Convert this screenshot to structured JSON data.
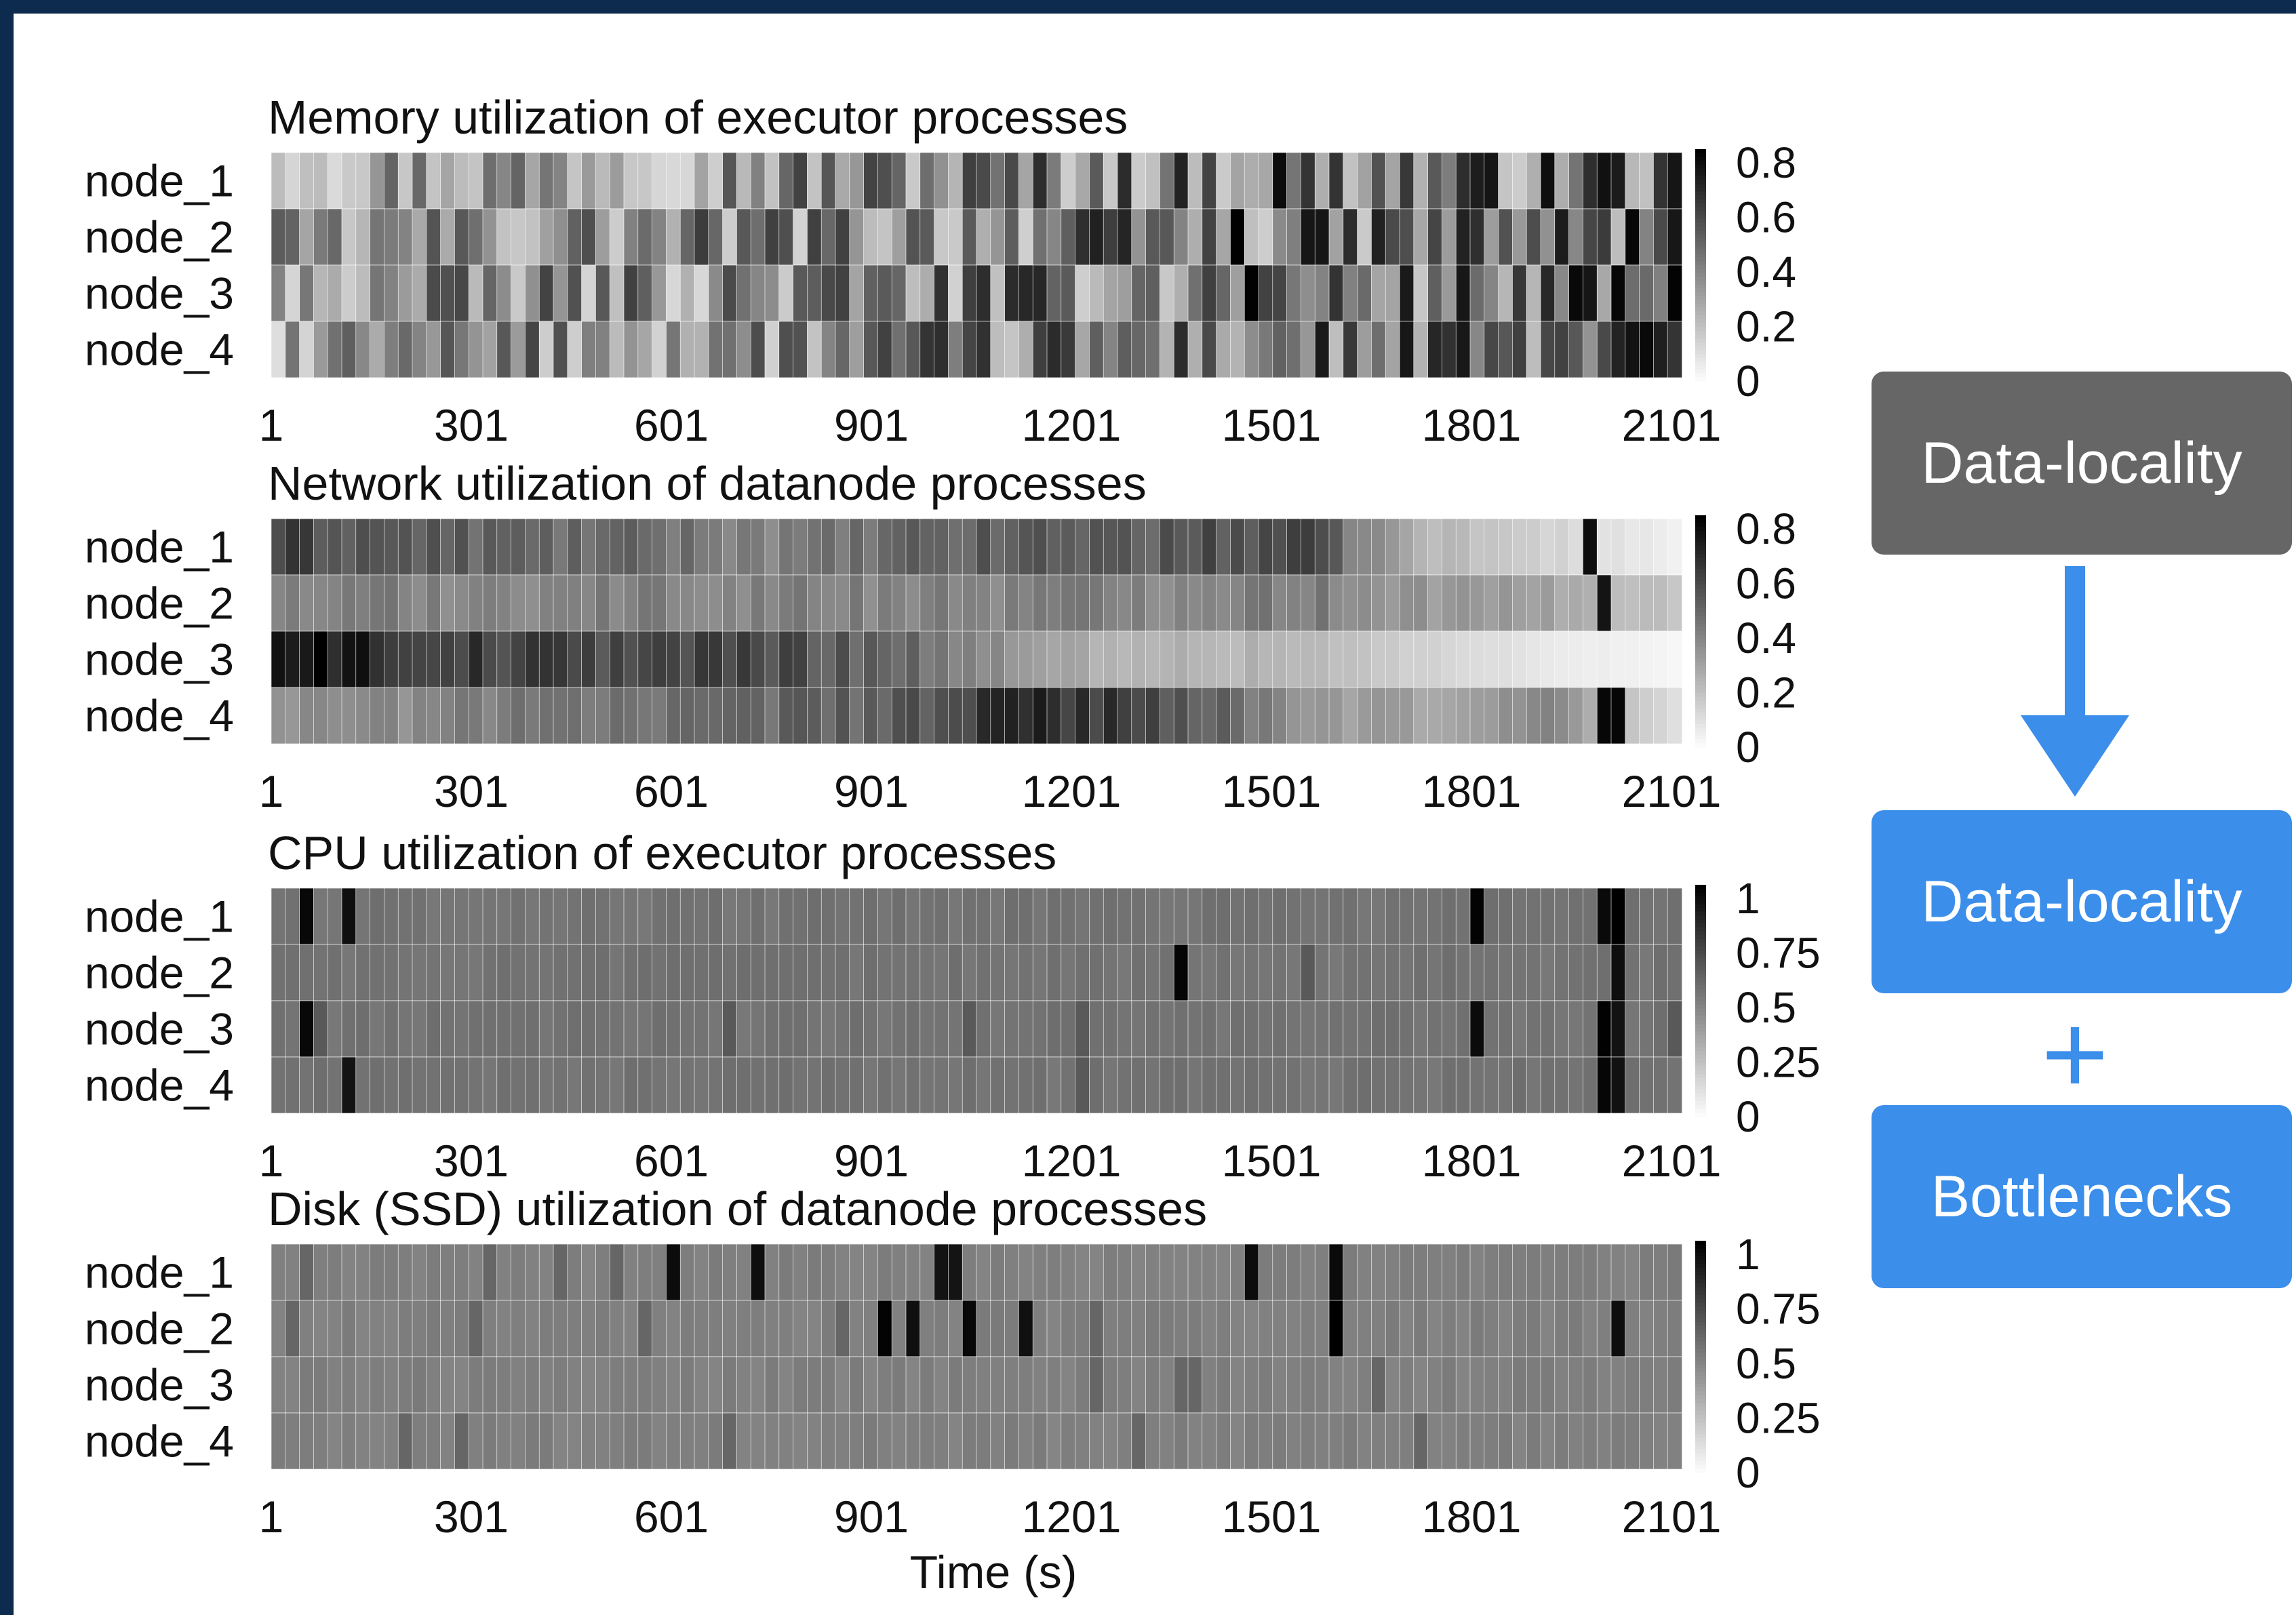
{
  "chart_data": [
    {
      "type": "heatmap",
      "title": "Memory utilization of executor processes",
      "rows": [
        "node_1",
        "node_2",
        "node_3",
        "node_4"
      ],
      "x_ticks": [
        "1",
        "301",
        "601",
        "901",
        "1201",
        "1501",
        "1801",
        "2101"
      ],
      "x_range": [
        1,
        2120
      ],
      "colorbar_ticks": [
        "0.8",
        "0.6",
        "0.4",
        "0.2",
        "0"
      ],
      "colorbar_range": [
        0,
        0.85
      ],
      "pattern": "random",
      "profile": [
        0.35,
        0.4,
        0.42,
        0.45,
        0.48,
        0.5,
        0.52,
        0.55
      ],
      "spike_x": [
        1450,
        1475,
        1525,
        2000,
        2040,
        2055,
        2075
      ],
      "spikes": [
        [
          1,
          1450
        ],
        [
          0,
          1525
        ],
        [
          2,
          1475
        ],
        [
          3,
          2040
        ],
        [
          0,
          2000
        ],
        [
          1,
          2055
        ],
        [
          3,
          2075
        ]
      ]
    },
    {
      "type": "heatmap",
      "title": "Network utilization of datanode processes",
      "rows": [
        "node_1",
        "node_2",
        "node_3",
        "node_4"
      ],
      "x_ticks": [
        "1",
        "301",
        "601",
        "901",
        "1201",
        "1501",
        "1801",
        "2101"
      ],
      "x_range": [
        1,
        2120
      ],
      "colorbar_ticks": [
        "0.8",
        "0.6",
        "0.4",
        "0.2",
        "0"
      ],
      "colorbar_range": [
        0,
        0.85
      ],
      "pattern": "smooth",
      "row_profiles": [
        [
          0.62,
          0.55,
          0.5,
          0.48,
          0.42,
          0.5,
          0.55,
          0.55,
          0.62,
          0.25,
          0.15,
          0.05
        ],
        [
          0.42,
          0.42,
          0.42,
          0.42,
          0.42,
          0.42,
          0.42,
          0.42,
          0.45,
          0.35,
          0.3,
          0.2
        ],
        [
          0.85,
          0.68,
          0.62,
          0.62,
          0.6,
          0.5,
          0.3,
          0.25,
          0.25,
          0.15,
          0.08,
          0.03
        ],
        [
          0.38,
          0.38,
          0.48,
          0.45,
          0.5,
          0.55,
          0.72,
          0.6,
          0.35,
          0.3,
          0.4,
          0.1
        ]
      ],
      "spikes": [
        [
          0,
          1990
        ],
        [
          1,
          2010
        ],
        [
          3,
          2005
        ],
        [
          3,
          2025
        ]
      ]
    },
    {
      "type": "heatmap",
      "title": "CPU utilization of executor processes",
      "rows": [
        "node_1",
        "node_2",
        "node_3",
        "node_4"
      ],
      "x_ticks": [
        "1",
        "301",
        "601",
        "901",
        "1201",
        "1501",
        "1801",
        "2101"
      ],
      "x_range": [
        1,
        2120
      ],
      "colorbar_ticks": [
        "1",
        "0.75",
        "0.5",
        "0.25",
        "0"
      ],
      "colorbar_range": [
        0,
        1
      ],
      "pattern": "flat",
      "base_value": 0.55,
      "spikes": [
        [
          0,
          63
        ],
        [
          0,
          123
        ],
        [
          0,
          1805
        ],
        [
          0,
          1995
        ],
        [
          0,
          2015
        ],
        [
          1,
          1370
        ],
        [
          1,
          2015
        ],
        [
          2,
          63
        ],
        [
          2,
          1805
        ],
        [
          2,
          1995
        ],
        [
          2,
          2015
        ],
        [
          3,
          123
        ],
        [
          3,
          1995
        ],
        [
          3,
          2015
        ]
      ]
    },
    {
      "type": "heatmap",
      "title": "Disk (SSD) utilization of datanode processes",
      "rows": [
        "node_1",
        "node_2",
        "node_3",
        "node_4"
      ],
      "x_ticks": [
        "1",
        "301",
        "601",
        "901",
        "1201",
        "1501",
        "1801",
        "2101"
      ],
      "x_range": [
        1,
        2120
      ],
      "colorbar_ticks": [
        "1",
        "0.75",
        "0.5",
        "0.25",
        "0"
      ],
      "colorbar_range": [
        0,
        1
      ],
      "pattern": "flat",
      "base_value": 0.5,
      "xlabel": "Time (s)",
      "spikes": [
        [
          0,
          615
        ],
        [
          0,
          725
        ],
        [
          0,
          1015
        ],
        [
          0,
          1030
        ],
        [
          0,
          1480
        ],
        [
          0,
          1600
        ],
        [
          1,
          915
        ],
        [
          1,
          965
        ],
        [
          1,
          1060
        ],
        [
          1,
          1135
        ],
        [
          1,
          1610
        ],
        [
          1,
          2030
        ]
      ]
    }
  ],
  "side_panel": {
    "box_1": "Data-locality",
    "box_2": "Data-locality",
    "box_3": "Bottlenecks",
    "plus": "+",
    "colors": {
      "gray_box": "#666666",
      "blue_box": "#3b8eea",
      "frame": "#0d2b4e"
    }
  }
}
